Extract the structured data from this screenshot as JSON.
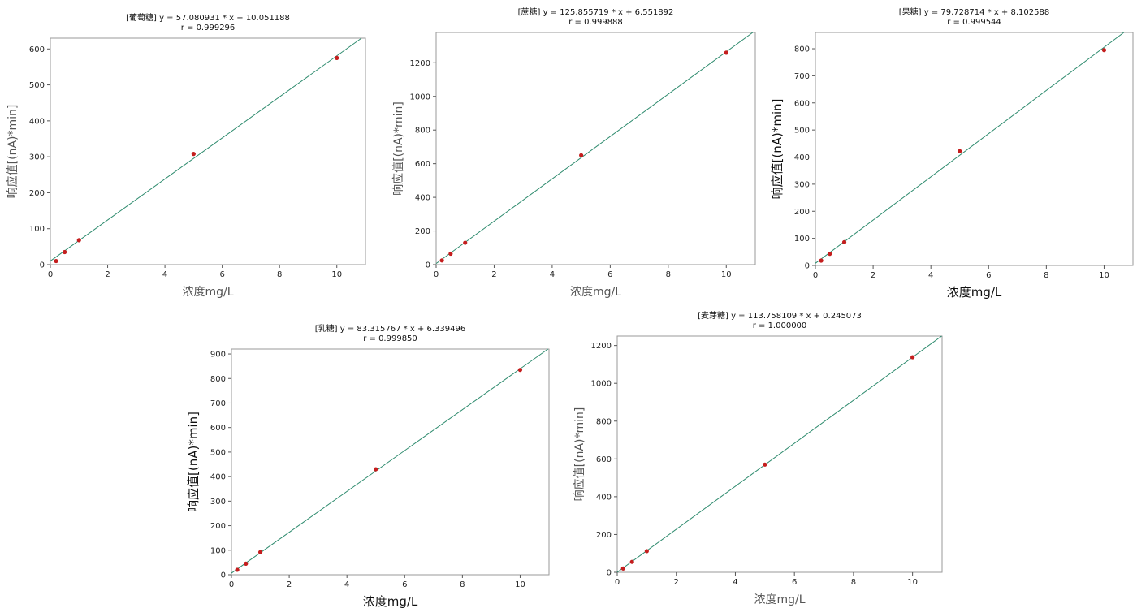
{
  "chart_data": [
    {
      "type": "scatter",
      "title": "[葡萄糖] y = 57.080931 * x + 10.051188",
      "subtitle": "r = 0.999296",
      "xlabel": "浓度mg/L",
      "ylabel": "响应值[(nA)*min]",
      "xlim": [
        0,
        11
      ],
      "ylim": [
        0,
        630
      ],
      "xticks": [
        "0",
        "2",
        "4",
        "6",
        "8",
        "10"
      ],
      "yticks": [
        "0",
        "100",
        "200",
        "300",
        "400",
        "500",
        "600"
      ],
      "fit": {
        "slope": 57.080931,
        "intercept": 10.051188
      },
      "x": [
        0.2,
        0.5,
        1,
        5,
        10
      ],
      "y": [
        10,
        35,
        68,
        308,
        575
      ]
    },
    {
      "type": "scatter",
      "title": "[蔗糖] y = 125.855719 * x + 6.551892",
      "subtitle": "r = 0.999888",
      "xlabel": "浓度mg/L",
      "ylabel": "响应值[(nA)*min]",
      "xlim": [
        0,
        11
      ],
      "ylim": [
        0,
        1380
      ],
      "xticks": [
        "0",
        "2",
        "4",
        "6",
        "8",
        "10"
      ],
      "yticks": [
        "0",
        "200",
        "400",
        "600",
        "800",
        "1000",
        "1200"
      ],
      "fit": {
        "slope": 125.855719,
        "intercept": 6.551892
      },
      "x": [
        0.2,
        0.5,
        1,
        5,
        10
      ],
      "y": [
        25,
        65,
        130,
        650,
        1260
      ]
    },
    {
      "type": "scatter",
      "title": "[果糖] y = 79.728714 * x + 8.102588",
      "subtitle": "r = 0.999544",
      "xlabel": "浓度mg/L",
      "ylabel": "响应值[(nA)*min]",
      "xlim": [
        0,
        11
      ],
      "ylim": [
        0,
        860
      ],
      "xticks": [
        "0",
        "2",
        "4",
        "6",
        "8",
        "10"
      ],
      "yticks": [
        "0",
        "100",
        "200",
        "300",
        "400",
        "500",
        "600",
        "700",
        "800"
      ],
      "fit": {
        "slope": 79.728714,
        "intercept": 8.102588
      },
      "x": [
        0.2,
        0.5,
        1,
        5,
        10
      ],
      "y": [
        18,
        43,
        86,
        422,
        795
      ]
    },
    {
      "type": "scatter",
      "title": "[乳糖] y = 83.315767 * x + 6.339496",
      "subtitle": "r = 0.999850",
      "xlabel": "浓度mg/L",
      "ylabel": "响应值[(nA)*min]",
      "xlim": [
        0,
        11
      ],
      "ylim": [
        0,
        920
      ],
      "xticks": [
        "0",
        "2",
        "4",
        "6",
        "8",
        "10"
      ],
      "yticks": [
        "0",
        "100",
        "200",
        "300",
        "400",
        "500",
        "600",
        "700",
        "800",
        "900"
      ],
      "fit": {
        "slope": 83.315767,
        "intercept": 6.339496
      },
      "x": [
        0.2,
        0.5,
        1,
        5,
        10
      ],
      "y": [
        20,
        45,
        92,
        430,
        835
      ]
    },
    {
      "type": "scatter",
      "title": "[麦芽糖] y = 113.758109 * x + 0.245073",
      "subtitle": "r = 1.000000",
      "xlabel": "浓度mg/L",
      "ylabel": "响应值[(nA)*min]",
      "xlim": [
        0,
        11
      ],
      "ylim": [
        0,
        1250
      ],
      "xticks": [
        "0",
        "2",
        "4",
        "6",
        "8",
        "10"
      ],
      "yticks": [
        "0",
        "200",
        "400",
        "600",
        "800",
        "1000",
        "1200"
      ],
      "fit": {
        "slope": 113.758109,
        "intercept": 0.245073
      },
      "x": [
        0.2,
        0.5,
        1,
        5,
        10
      ],
      "y": [
        20,
        55,
        112,
        570,
        1138
      ]
    }
  ],
  "colors": {
    "fit_line": "#2e8b6e",
    "points": "#c41e1e",
    "frame": "#9a9a9a"
  }
}
